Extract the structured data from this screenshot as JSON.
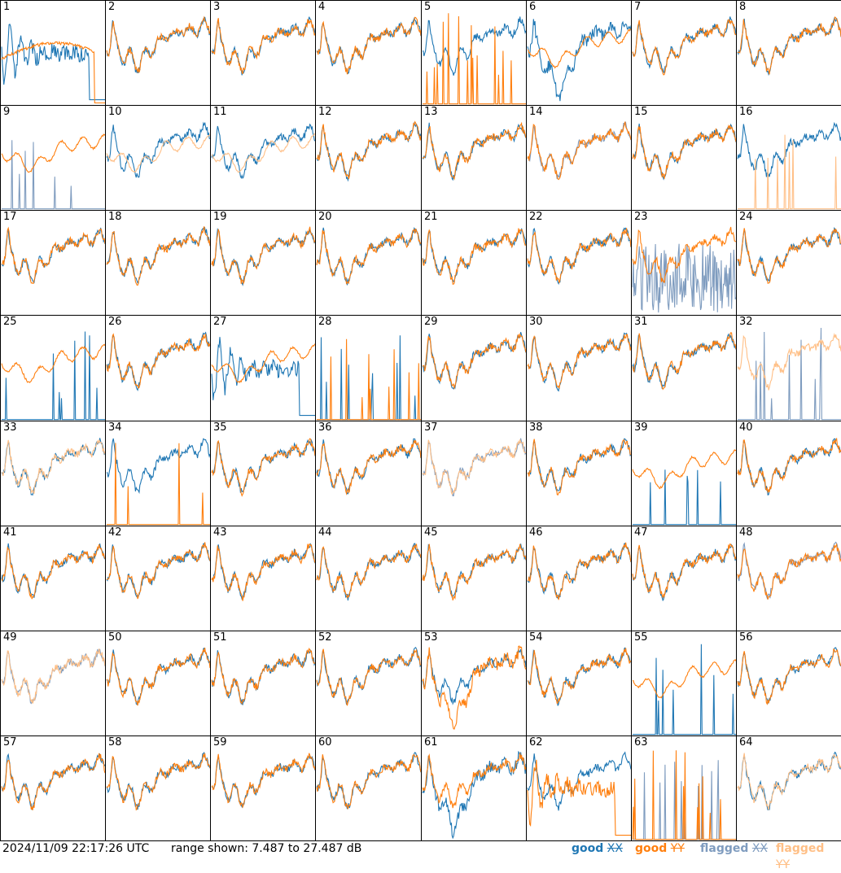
{
  "chart_data": {
    "type": "line",
    "timestamp": "2024/11/09 22:17:26 UTC",
    "range_text": "range shown: 7.487 to 27.487 dB",
    "ylim": [
      7.487,
      27.487
    ],
    "rows": 8,
    "cols": 8,
    "legend": [
      {
        "name": "good",
        "tag": "XX",
        "color": "#1f77b4"
      },
      {
        "name": "good",
        "tag": "YY",
        "color": "#ff7f0e"
      },
      {
        "name": "flagged",
        "tag": "XX",
        "color": "#7f9cbf"
      },
      {
        "name": "flagged",
        "tag": "YY",
        "color": "#ffbf86"
      }
    ],
    "panels": [
      {
        "n": "1",
        "kx": "g",
        "ky": "g",
        "px": "decay",
        "py": "ramp"
      },
      {
        "n": "2",
        "kx": "g",
        "ky": "g",
        "px": "n",
        "py": "n"
      },
      {
        "n": "3",
        "kx": "g",
        "ky": "g",
        "px": "n",
        "py": "n"
      },
      {
        "n": "4",
        "kx": "g",
        "ky": "g",
        "px": "n",
        "py": "n"
      },
      {
        "n": "5",
        "kx": "g",
        "ky": "g",
        "px": "n",
        "py": "spikes"
      },
      {
        "n": "6",
        "kx": "g",
        "ky": "g",
        "px": "deep",
        "py": "smooth"
      },
      {
        "n": "7",
        "kx": "g",
        "ky": "g",
        "px": "n",
        "py": "n"
      },
      {
        "n": "8",
        "kx": "g",
        "ky": "g",
        "px": "n",
        "py": "n"
      },
      {
        "n": "9",
        "kx": "f",
        "ky": "g",
        "px": "spikes",
        "py": "smooth"
      },
      {
        "n": "10",
        "kx": "g",
        "ky": "f",
        "px": "n",
        "py": "smooth"
      },
      {
        "n": "11",
        "kx": "g",
        "ky": "f",
        "px": "n",
        "py": "smooth"
      },
      {
        "n": "12",
        "kx": "g",
        "ky": "g",
        "px": "n",
        "py": "n"
      },
      {
        "n": "13",
        "kx": "g",
        "ky": "g",
        "px": "n",
        "py": "n"
      },
      {
        "n": "14",
        "kx": "f",
        "ky": "g",
        "px": "n",
        "py": "n"
      },
      {
        "n": "15",
        "kx": "g",
        "ky": "g",
        "px": "n",
        "py": "n"
      },
      {
        "n": "16",
        "kx": "g",
        "ky": "f",
        "px": "n",
        "py": "spikes"
      },
      {
        "n": "17",
        "kx": "g",
        "ky": "g",
        "px": "n",
        "py": "n"
      },
      {
        "n": "18",
        "kx": "g",
        "ky": "g",
        "px": "n",
        "py": "n"
      },
      {
        "n": "19",
        "kx": "g",
        "ky": "g",
        "px": "n",
        "py": "n"
      },
      {
        "n": "20",
        "kx": "g",
        "ky": "g",
        "px": "n",
        "py": "n"
      },
      {
        "n": "21",
        "kx": "g",
        "ky": "g",
        "px": "n",
        "py": "n"
      },
      {
        "n": "22",
        "kx": "g",
        "ky": "g",
        "px": "n",
        "py": "n"
      },
      {
        "n": "23",
        "kx": "f",
        "ky": "g",
        "px": "noise",
        "py": "n"
      },
      {
        "n": "24",
        "kx": "g",
        "ky": "g",
        "px": "n",
        "py": "n"
      },
      {
        "n": "25",
        "kx": "g",
        "ky": "g",
        "px": "spikes",
        "py": "smooth"
      },
      {
        "n": "26",
        "kx": "g",
        "ky": "g",
        "px": "n",
        "py": "n"
      },
      {
        "n": "27",
        "kx": "g",
        "ky": "g",
        "px": "decay",
        "py": "smooth"
      },
      {
        "n": "28",
        "kx": "g",
        "ky": "g",
        "px": "spikes",
        "py": "spikes"
      },
      {
        "n": "29",
        "kx": "g",
        "ky": "g",
        "px": "n",
        "py": "n"
      },
      {
        "n": "30",
        "kx": "g",
        "ky": "g",
        "px": "n",
        "py": "n"
      },
      {
        "n": "31",
        "kx": "g",
        "ky": "g",
        "px": "n",
        "py": "n"
      },
      {
        "n": "32",
        "kx": "f",
        "ky": "f",
        "px": "spikes",
        "py": "n"
      },
      {
        "n": "33",
        "kx": "g",
        "ky": "f",
        "px": "n",
        "py": "n"
      },
      {
        "n": "34",
        "kx": "g",
        "ky": "g",
        "px": "n",
        "py": "spikes"
      },
      {
        "n": "35",
        "kx": "g",
        "ky": "g",
        "px": "n",
        "py": "n"
      },
      {
        "n": "36",
        "kx": "g",
        "ky": "g",
        "px": "n",
        "py": "n"
      },
      {
        "n": "37",
        "kx": "f",
        "ky": "f",
        "px": "n",
        "py": "n"
      },
      {
        "n": "38",
        "kx": "g",
        "ky": "g",
        "px": "n",
        "py": "n"
      },
      {
        "n": "39",
        "kx": "g",
        "ky": "g",
        "px": "spikes",
        "py": "smooth"
      },
      {
        "n": "40",
        "kx": "g",
        "ky": "g",
        "px": "n",
        "py": "n"
      },
      {
        "n": "41",
        "kx": "g",
        "ky": "g",
        "px": "n",
        "py": "n"
      },
      {
        "n": "42",
        "kx": "g",
        "ky": "g",
        "px": "n",
        "py": "n"
      },
      {
        "n": "43",
        "kx": "g",
        "ky": "g",
        "px": "n",
        "py": "n"
      },
      {
        "n": "44",
        "kx": "g",
        "ky": "g",
        "px": "n",
        "py": "n"
      },
      {
        "n": "45",
        "kx": "g",
        "ky": "g",
        "px": "n",
        "py": "n"
      },
      {
        "n": "46",
        "kx": "g",
        "ky": "g",
        "px": "n",
        "py": "n"
      },
      {
        "n": "47",
        "kx": "g",
        "ky": "g",
        "px": "n",
        "py": "n"
      },
      {
        "n": "48",
        "kx": "f",
        "ky": "g",
        "px": "n",
        "py": "n"
      },
      {
        "n": "49",
        "kx": "f",
        "ky": "f",
        "px": "n",
        "py": "n"
      },
      {
        "n": "50",
        "kx": "g",
        "ky": "g",
        "px": "n",
        "py": "n"
      },
      {
        "n": "51",
        "kx": "g",
        "ky": "g",
        "px": "n",
        "py": "n"
      },
      {
        "n": "52",
        "kx": "g",
        "ky": "g",
        "px": "n",
        "py": "n"
      },
      {
        "n": "53",
        "kx": "g",
        "ky": "g",
        "px": "n",
        "py": "deep"
      },
      {
        "n": "54",
        "kx": "g",
        "ky": "g",
        "px": "n",
        "py": "n"
      },
      {
        "n": "55",
        "kx": "g",
        "ky": "g",
        "px": "spikes",
        "py": "smooth"
      },
      {
        "n": "56",
        "kx": "g",
        "ky": "g",
        "px": "n",
        "py": "n"
      },
      {
        "n": "57",
        "kx": "g",
        "ky": "g",
        "px": "n",
        "py": "n"
      },
      {
        "n": "58",
        "kx": "g",
        "ky": "g",
        "px": "n",
        "py": "n"
      },
      {
        "n": "59",
        "kx": "g",
        "ky": "g",
        "px": "n",
        "py": "n"
      },
      {
        "n": "60",
        "kx": "g",
        "ky": "g",
        "px": "n",
        "py": "n"
      },
      {
        "n": "61",
        "kx": "g",
        "ky": "g",
        "px": "deep",
        "py": "n"
      },
      {
        "n": "62",
        "kx": "g",
        "ky": "g",
        "px": "n",
        "py": "decay"
      },
      {
        "n": "63",
        "kx": "f",
        "ky": "g",
        "px": "spikes",
        "py": "spikes"
      },
      {
        "n": "64",
        "kx": "g",
        "ky": "f",
        "px": "n",
        "py": "n"
      }
    ]
  }
}
